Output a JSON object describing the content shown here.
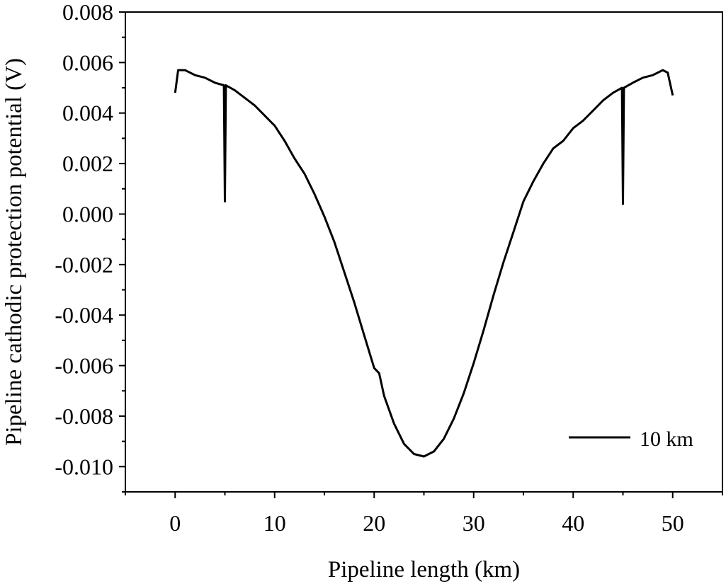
{
  "chart_data": {
    "type": "line",
    "title": "",
    "xlabel": "Pipeline length (km)",
    "ylabel": "Pipeline cathodic protection potential (V)",
    "xlim": [
      -5,
      55
    ],
    "ylim": [
      -0.011,
      0.008
    ],
    "x_ticks": [
      0,
      10,
      20,
      30,
      40,
      50
    ],
    "x_tick_labels": [
      "0",
      "10",
      "20",
      "30",
      "40",
      "50"
    ],
    "y_ticks": [
      0.008,
      0.006,
      0.004,
      0.002,
      0.0,
      -0.002,
      -0.004,
      -0.006,
      -0.008,
      -0.01
    ],
    "y_tick_labels": [
      "0.008",
      "0.006",
      "0.004",
      "0.002",
      "0.000",
      "-0.002",
      "-0.004",
      "-0.006",
      "-0.008",
      "-0.010"
    ],
    "grid": false,
    "legend_position": "bottom-right",
    "line_color": "#000000",
    "series": [
      {
        "name": "10 km",
        "x": [
          0,
          0.3,
          1,
          2,
          3,
          4,
          4.9,
          5,
          5.1,
          6,
          7,
          8,
          9,
          10,
          11,
          12,
          13,
          14,
          15,
          16,
          17,
          18,
          19,
          20,
          20.5,
          21,
          22,
          23,
          24,
          25,
          26,
          27,
          28,
          29,
          30,
          31,
          32,
          33,
          34,
          35,
          36,
          37,
          38,
          39,
          40,
          41,
          42,
          43,
          44,
          44.9,
          45,
          45.1,
          46,
          47,
          48,
          49,
          49.5,
          50
        ],
        "y": [
          0.0048,
          0.0057,
          0.0057,
          0.0055,
          0.0054,
          0.0052,
          0.0051,
          0.0005,
          0.0051,
          0.0049,
          0.0046,
          0.0043,
          0.0039,
          0.0035,
          0.0029,
          0.0022,
          0.0016,
          0.0008,
          -0.0001,
          -0.0011,
          -0.0023,
          -0.0035,
          -0.0048,
          -0.0061,
          -0.0063,
          -0.0072,
          -0.0083,
          -0.0091,
          -0.0095,
          -0.0096,
          -0.0094,
          -0.0089,
          -0.0081,
          -0.0071,
          -0.0059,
          -0.0046,
          -0.0032,
          -0.0019,
          -0.0007,
          0.0005,
          0.0013,
          0.002,
          0.0026,
          0.0029,
          0.0034,
          0.0037,
          0.0041,
          0.0045,
          0.0048,
          0.005,
          0.0004,
          0.005,
          0.0052,
          0.0054,
          0.0055,
          0.0057,
          0.0056,
          0.0047
        ]
      }
    ]
  }
}
